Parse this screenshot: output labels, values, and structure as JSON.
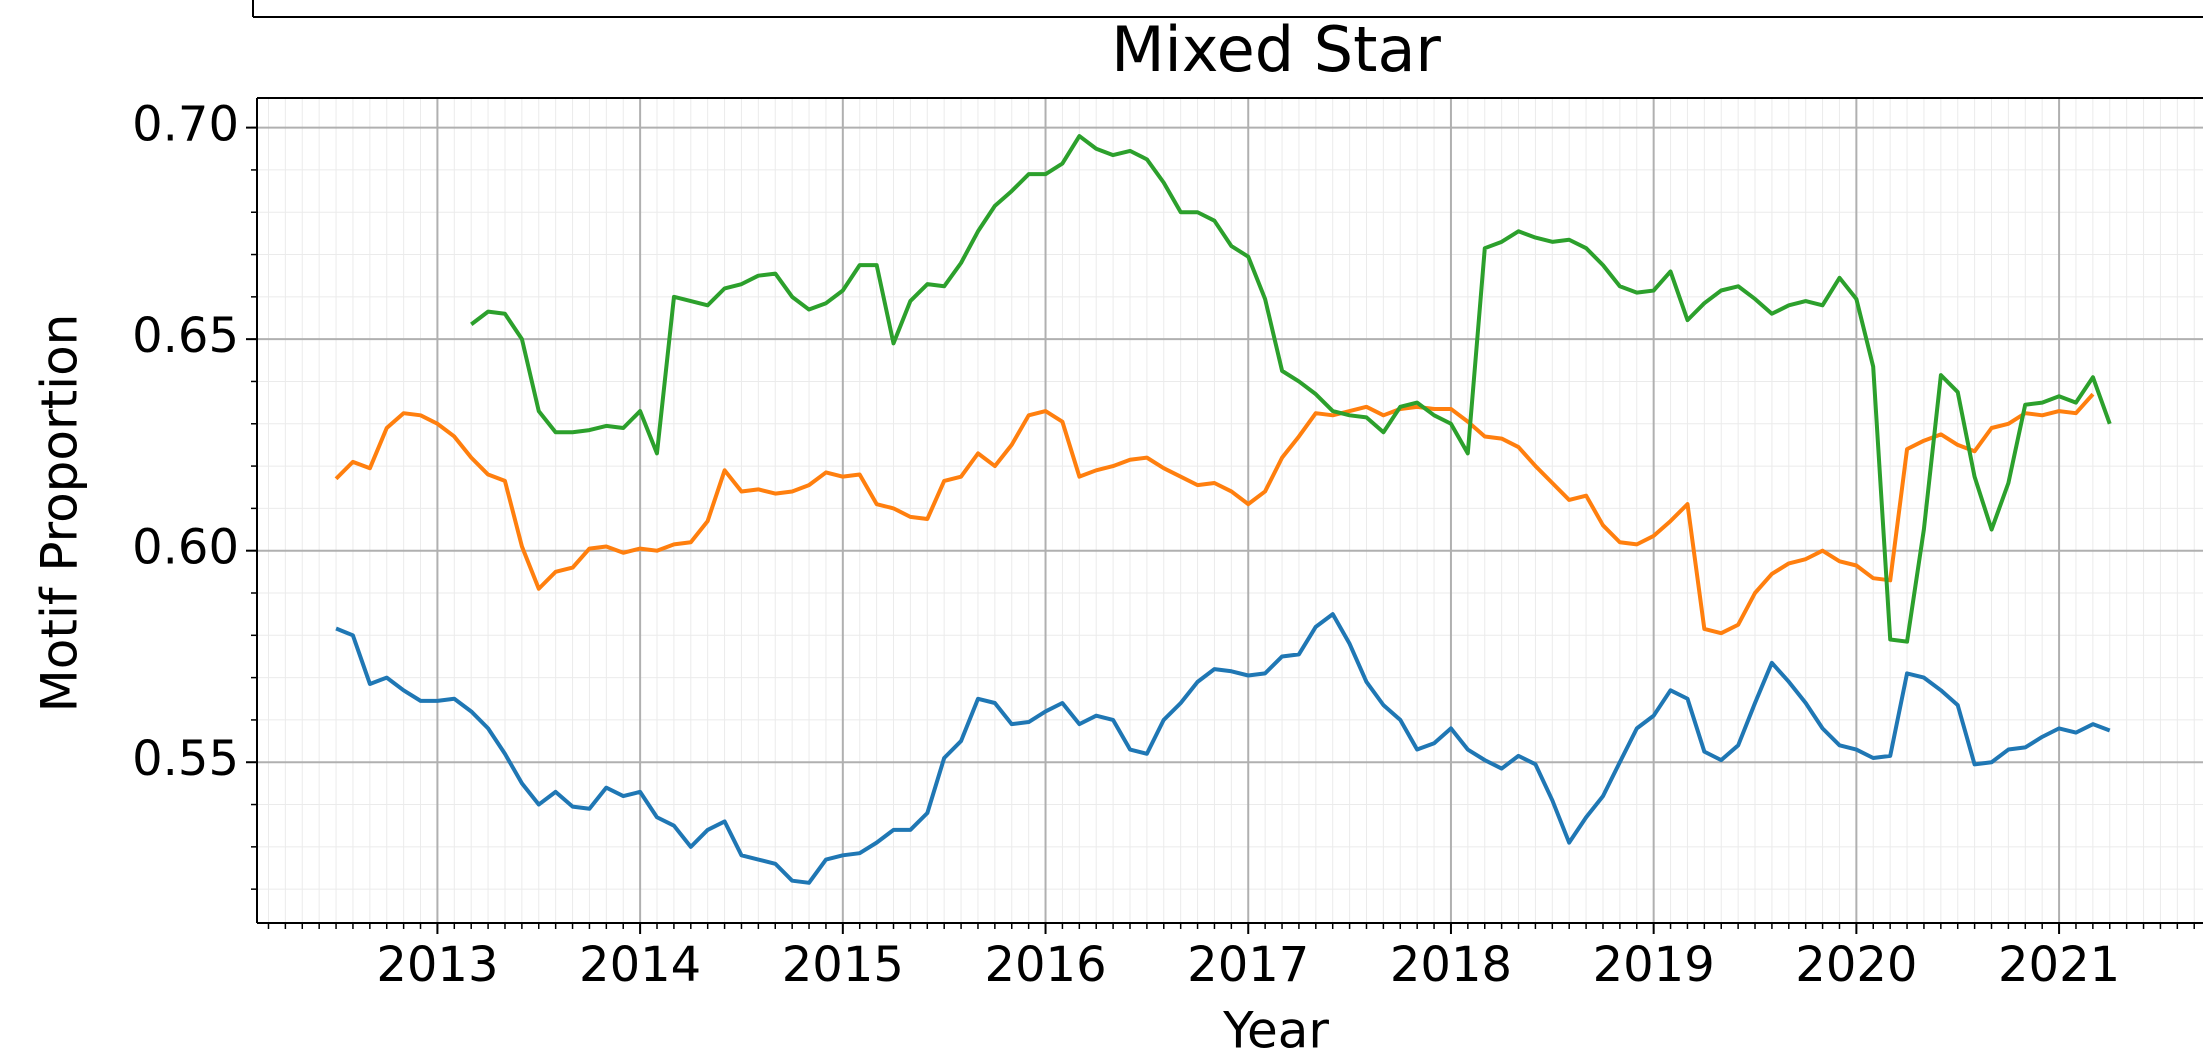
{
  "chart_data": {
    "type": "line",
    "title": "Mixed Star",
    "xlabel": "Year",
    "ylabel": "Motif Proportion",
    "xlim": [
      2012.11,
      2021.71
    ],
    "ylim": [
      0.512,
      0.707
    ],
    "xticks": [
      2013,
      2014,
      2015,
      2016,
      2017,
      2018,
      2019,
      2020,
      2021
    ],
    "yticks": [
      0.55,
      {
        "value": 0.6,
        "label": "0.60"
      },
      0.65,
      {
        "value": 0.7,
        "label": "0.70"
      }
    ],
    "grid": true,
    "minor_grid": true,
    "x": [
      2012.5,
      2012.583,
      2012.667,
      2012.75,
      2012.833,
      2012.917,
      2013.0,
      2013.083,
      2013.167,
      2013.25,
      2013.333,
      2013.417,
      2013.5,
      2013.583,
      2013.667,
      2013.75,
      2013.833,
      2013.917,
      2014.0,
      2014.083,
      2014.167,
      2014.25,
      2014.333,
      2014.417,
      2014.5,
      2014.583,
      2014.667,
      2014.75,
      2014.833,
      2014.917,
      2015.0,
      2015.083,
      2015.167,
      2015.25,
      2015.333,
      2015.417,
      2015.5,
      2015.583,
      2015.667,
      2015.75,
      2015.833,
      2015.917,
      2016.0,
      2016.083,
      2016.167,
      2016.25,
      2016.333,
      2016.417,
      2016.5,
      2016.583,
      2016.667,
      2016.75,
      2016.833,
      2016.917,
      2017.0,
      2017.083,
      2017.167,
      2017.25,
      2017.333,
      2017.417,
      2017.5,
      2017.583,
      2017.667,
      2017.75,
      2017.833,
      2017.917,
      2018.0,
      2018.083,
      2018.167,
      2018.25,
      2018.333,
      2018.417,
      2018.5,
      2018.583,
      2018.667,
      2018.75,
      2018.833,
      2018.917,
      2019.0,
      2019.083,
      2019.167,
      2019.25,
      2019.333,
      2019.417,
      2019.5,
      2019.583,
      2019.667,
      2019.75,
      2019.833,
      2019.917,
      2020.0,
      2020.083,
      2020.167,
      2020.25,
      2020.333,
      2020.417,
      2020.5,
      2020.583,
      2020.667,
      2020.75,
      2020.833,
      2020.917,
      2021.0,
      2021.083,
      2021.167,
      2021.25
    ],
    "series": [
      {
        "color": "#1f77b4",
        "values": [
          0.5816,
          0.58,
          0.5685,
          0.57,
          0.567,
          0.5645,
          0.5645,
          0.565,
          0.562,
          0.558,
          0.552,
          0.545,
          0.54,
          0.543,
          0.5395,
          0.539,
          0.544,
          0.542,
          0.543,
          0.537,
          0.535,
          0.53,
          0.534,
          0.536,
          0.528,
          0.527,
          0.526,
          0.522,
          0.5215,
          0.527,
          0.528,
          0.5285,
          0.531,
          0.534,
          0.534,
          0.538,
          0.551,
          0.555,
          0.565,
          0.564,
          0.559,
          0.5595,
          0.562,
          0.564,
          0.559,
          0.561,
          0.56,
          0.553,
          0.552,
          0.56,
          0.564,
          0.569,
          0.572,
          0.5715,
          0.5705,
          0.571,
          0.575,
          0.5755,
          0.582,
          0.585,
          0.578,
          0.569,
          0.5635,
          0.56,
          0.553,
          0.5545,
          0.558,
          0.553,
          0.5505,
          0.5485,
          0.5515,
          0.5495,
          0.541,
          0.531,
          0.537,
          0.542,
          0.55,
          0.558,
          0.561,
          0.567,
          0.565,
          0.5525,
          0.5505,
          0.554,
          0.564,
          0.5735,
          0.569,
          0.564,
          0.558,
          0.554,
          0.553,
          0.551,
          0.5515,
          0.571,
          0.57,
          0.567,
          0.5635,
          0.5495,
          0.55,
          0.553,
          0.5535,
          0.556,
          0.558,
          0.557,
          0.559,
          0.5575
        ]
      },
      {
        "color": "#ff7f0e",
        "values": [
          0.617,
          0.621,
          0.6195,
          0.629,
          0.6325,
          0.632,
          0.63,
          0.627,
          0.622,
          0.618,
          0.6165,
          0.601,
          0.591,
          0.595,
          0.596,
          0.6005,
          0.601,
          0.5995,
          0.6005,
          0.6,
          0.6015,
          0.602,
          0.607,
          0.619,
          0.614,
          0.6145,
          0.6135,
          0.614,
          0.6155,
          0.6185,
          0.6175,
          0.618,
          0.611,
          0.61,
          0.608,
          0.6075,
          0.6165,
          0.6175,
          0.623,
          0.62,
          0.625,
          0.632,
          0.633,
          0.6305,
          0.6175,
          0.619,
          0.62,
          0.6215,
          0.622,
          0.6195,
          0.6175,
          0.6155,
          0.616,
          0.614,
          0.611,
          0.614,
          0.622,
          0.627,
          0.6325,
          0.632,
          0.633,
          0.634,
          0.632,
          0.6335,
          0.634,
          0.6335,
          0.6335,
          0.6305,
          0.627,
          0.6265,
          0.6245,
          0.62,
          0.616,
          0.612,
          0.613,
          0.606,
          0.602,
          0.6015,
          0.6035,
          0.607,
          0.611,
          0.5815,
          0.5805,
          0.5825,
          0.59,
          0.5945,
          0.597,
          0.598,
          0.6,
          0.5975,
          0.5965,
          0.5935,
          0.593,
          0.624,
          0.626,
          0.6275,
          0.625,
          0.6235,
          0.629,
          0.63,
          0.6325,
          0.632,
          0.633,
          0.6325,
          0.637,
          null
        ]
      },
      {
        "color": "#2ca02c",
        "values": [
          null,
          null,
          null,
          null,
          null,
          null,
          null,
          null,
          0.6535,
          0.6565,
          0.656,
          0.65,
          0.633,
          0.628,
          0.628,
          0.6285,
          0.6295,
          0.629,
          0.633,
          0.623,
          0.66,
          0.659,
          0.658,
          0.662,
          0.663,
          0.665,
          0.6655,
          0.66,
          0.657,
          0.6585,
          0.6615,
          0.6675,
          0.6675,
          0.649,
          0.659,
          0.663,
          0.6625,
          0.668,
          0.6755,
          0.6815,
          0.685,
          0.689,
          0.689,
          0.6915,
          0.698,
          0.695,
          0.6935,
          0.6945,
          0.6925,
          0.687,
          0.68,
          0.68,
          0.678,
          0.672,
          0.6695,
          0.6595,
          0.6425,
          0.64,
          0.637,
          0.633,
          0.632,
          0.6315,
          0.628,
          0.634,
          0.635,
          0.632,
          0.63,
          0.623,
          0.6715,
          0.673,
          0.6755,
          0.674,
          0.673,
          0.6735,
          0.6715,
          0.6675,
          0.6625,
          0.661,
          0.6615,
          0.666,
          0.6545,
          0.6585,
          0.6615,
          0.6625,
          0.6595,
          0.656,
          0.658,
          0.659,
          0.658,
          0.6645,
          0.6595,
          0.6435,
          0.579,
          0.5785,
          0.605,
          0.6415,
          0.6375,
          0.6175,
          0.605,
          0.616,
          0.6345,
          0.635,
          0.6365,
          0.635,
          0.641,
          0.63
        ]
      }
    ]
  }
}
